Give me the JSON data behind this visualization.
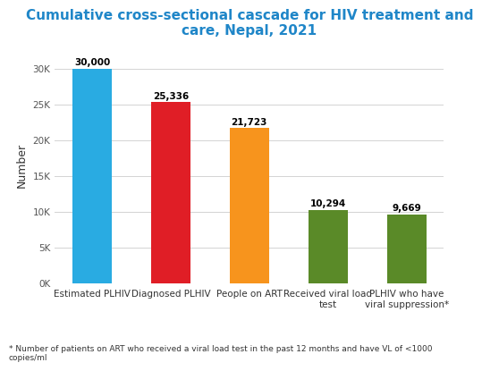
{
  "title": "Cumulative cross-sectional cascade for HIV treatment and\ncare, Nepal, 2021",
  "title_color": "#1F86C8",
  "categories": [
    "Estimated PLHIV",
    "Diagnosed PLHIV",
    "People on ART",
    "Received viral load\ntest",
    "PLHIV who have\nviral suppression*"
  ],
  "values": [
    30000,
    25336,
    21723,
    10294,
    9669
  ],
  "labels": [
    "30,000",
    "25,336",
    "21,723",
    "10,294",
    "9,669"
  ],
  "bar_colors": [
    "#29ABE2",
    "#E01E26",
    "#F7941D",
    "#5A8A28",
    "#5A8A28"
  ],
  "ylabel": "Number",
  "ylim": [
    0,
    33000
  ],
  "yticks": [
    0,
    5000,
    10000,
    15000,
    20000,
    25000,
    30000
  ],
  "ytick_labels": [
    "0K",
    "5K",
    "10K",
    "15K",
    "20K",
    "25K",
    "30K"
  ],
  "footnote": "* Number of patients on ART who received a viral load test in the past 12 months and have VL of <1000\ncopies/ml",
  "background_color": "#FFFFFF",
  "grid_color": "#D3D3D3",
  "label_fontsize": 7.5,
  "title_fontsize": 11,
  "ylabel_fontsize": 9,
  "tick_fontsize": 7.5,
  "footnote_fontsize": 6.5,
  "bar_width": 0.5
}
